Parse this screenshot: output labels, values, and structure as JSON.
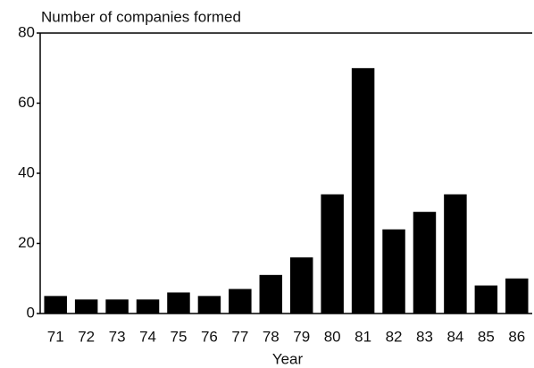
{
  "chart_data": {
    "type": "bar",
    "title": "Number of companies formed",
    "x_label": "Year",
    "categories": [
      "71",
      "72",
      "73",
      "74",
      "75",
      "76",
      "77",
      "78",
      "79",
      "80",
      "81",
      "82",
      "83",
      "84",
      "85",
      "86"
    ],
    "values": [
      5,
      4,
      4,
      4,
      6,
      5,
      7,
      11,
      16,
      34,
      70,
      24,
      29,
      34,
      8,
      10
    ],
    "color": "#000000",
    "ylim": [
      0,
      80
    ],
    "yticks": [
      0,
      20,
      40,
      60,
      80
    ],
    "grid": false
  }
}
